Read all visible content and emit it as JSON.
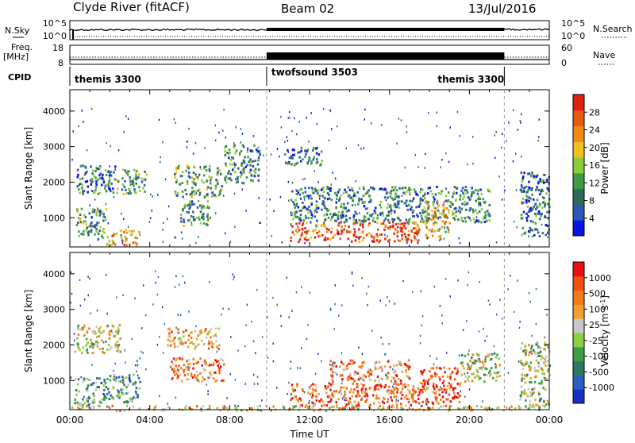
{
  "header": {
    "station": "Clyde River (fitACF)",
    "beam": "Beam 02",
    "date": "13/Jul/2016"
  },
  "top_panels": {
    "nsky_label": "N.Sky",
    "nsearch_label": "N.Search",
    "count_ticks_left": [
      "10^5",
      "10^0"
    ],
    "count_ticks_right": [
      "10^5",
      "10^0"
    ],
    "freq_label": "Freq.",
    "freq_unit": "[MHz]",
    "freq_ticks": [
      "18",
      "8"
    ],
    "nave_label": "Nave",
    "nave_ticks": [
      "60",
      "0"
    ],
    "cpid_label": "CPID"
  },
  "cpid_segments": [
    {
      "name": "themis 3300",
      "start_h": 0,
      "end_h": 9.85
    },
    {
      "name": "twofsound 3503",
      "start_h": 9.85,
      "end_h": 21.75
    },
    {
      "name": "themis 3300",
      "start_h": 21.75,
      "end_h": 24
    }
  ],
  "axes": {
    "xlabel": "Time UT",
    "x_ticks": [
      "00:00",
      "04:00",
      "08:00",
      "12:00",
      "16:00",
      "20:00",
      "00:00"
    ],
    "xlim_hours": [
      0,
      24
    ],
    "ylabel": "Slant Range [km]",
    "ylim_km": [
      180,
      4600
    ],
    "y_ticks": [
      1000,
      2000,
      3000,
      4000
    ]
  },
  "colorbars": {
    "power": {
      "label": "Power [dB]",
      "ticks": [
        "28",
        "24",
        "20",
        "16",
        "12",
        "8",
        "4"
      ],
      "colors": [
        "#0a14e0",
        "#2e55b8",
        "#2f6b5a",
        "#3f9a45",
        "#8ccc3a",
        "#f0c020",
        "#f08a10",
        "#e85a10",
        "#e02010"
      ]
    },
    "velocity": {
      "label": "Velocity [m s",
      "label_sup": "-1",
      "label_end": "]",
      "ticks": [
        "1000",
        "500",
        "100",
        "25",
        "-25",
        "-100",
        "-500",
        "-1000"
      ],
      "colors": [
        "#1830c0",
        "#2c60c0",
        "#2e7860",
        "#3e9e48",
        "#8ed040",
        "#c8c8c8",
        "#f0a030",
        "#f07c18",
        "#f05010",
        "#e81010"
      ]
    }
  },
  "chart_data": {
    "type": "heatmap",
    "title": "Clyde River (fitACF)  Beam 02  13/Jul/2016",
    "xlabel": "Time UT",
    "ylabel": "Slant Range [km]",
    "xlim": [
      0,
      24
    ],
    "ylim": [
      180,
      4600
    ],
    "grid": false,
    "series": [
      {
        "name": "Power [dB]",
        "regions": [
          {
            "t0": 0.3,
            "t1": 2.3,
            "r0": 1700,
            "r1": 2500,
            "level": 0.25
          },
          {
            "t0": 0.3,
            "t1": 1.8,
            "r0": 400,
            "r1": 1300,
            "level": 0.35
          },
          {
            "t0": 1.8,
            "t1": 3.5,
            "r0": 250,
            "r1": 700,
            "level": 0.7
          },
          {
            "t0": 2.3,
            "t1": 3.8,
            "r0": 1700,
            "r1": 2400,
            "level": 0.35
          },
          {
            "t0": 5.2,
            "t1": 7.6,
            "r0": 1600,
            "r1": 2500,
            "level": 0.4
          },
          {
            "t0": 5.5,
            "t1": 7.0,
            "r0": 800,
            "r1": 1500,
            "level": 0.35
          },
          {
            "t0": 7.7,
            "t1": 9.5,
            "r0": 2000,
            "r1": 3100,
            "level": 0.3
          },
          {
            "t0": 10.7,
            "t1": 12.6,
            "r0": 2500,
            "r1": 3000,
            "level": 0.25
          },
          {
            "t0": 11.0,
            "t1": 17.5,
            "r0": 350,
            "r1": 900,
            "level": 0.85
          },
          {
            "t0": 11.0,
            "t1": 21.0,
            "r0": 900,
            "r1": 1900,
            "level": 0.3
          },
          {
            "t0": 17.7,
            "t1": 19.0,
            "r0": 400,
            "r1": 1500,
            "level": 0.65
          },
          {
            "t0": 22.5,
            "t1": 24.0,
            "r0": 500,
            "r1": 2300,
            "level": 0.25
          }
        ]
      },
      {
        "name": "Velocity",
        "regions": [
          {
            "t0": 0.3,
            "t1": 2.5,
            "r0": 1800,
            "r1": 2600,
            "level": 0.55
          },
          {
            "t0": 0.2,
            "t1": 1.5,
            "r0": 300,
            "r1": 1100,
            "level": 0.35
          },
          {
            "t0": 1.5,
            "t1": 3.5,
            "r0": 400,
            "r1": 1200,
            "level": 0.3
          },
          {
            "t0": 5.0,
            "t1": 7.7,
            "r0": 1000,
            "r1": 1700,
            "level": 0.8
          },
          {
            "t0": 4.8,
            "t1": 7.5,
            "r0": 1900,
            "r1": 2500,
            "level": 0.65
          },
          {
            "t0": 11.0,
            "t1": 17.5,
            "r0": 300,
            "r1": 950,
            "level": 0.8
          },
          {
            "t0": 17.5,
            "t1": 19.5,
            "r0": 300,
            "r1": 1400,
            "level": 0.85
          },
          {
            "t0": 13.0,
            "t1": 17.0,
            "r0": 1000,
            "r1": 1600,
            "level": 0.75
          },
          {
            "t0": 19.5,
            "t1": 21.5,
            "r0": 1000,
            "r1": 1800,
            "level": 0.5
          },
          {
            "t0": 22.5,
            "t1": 24.0,
            "r0": 300,
            "r1": 2100,
            "level": 0.5
          },
          {
            "t0": 0.0,
            "t1": 24.0,
            "r0": 180,
            "r1": 320,
            "level": 0.6
          }
        ]
      }
    ]
  }
}
